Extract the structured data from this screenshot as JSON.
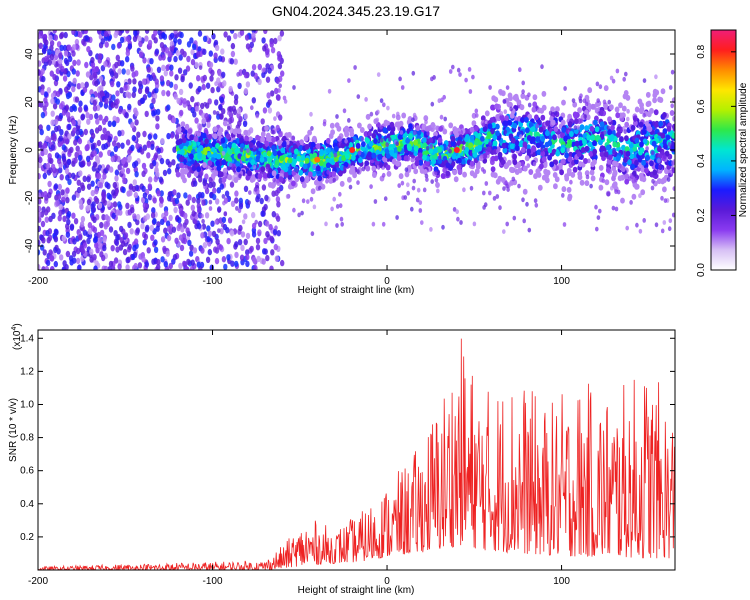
{
  "figure": {
    "title": "GN04.2024.345.23.19.G17"
  },
  "chart_data": [
    {
      "type": "heatmap",
      "xlabel": "Height of straight line (km)",
      "ylabel": "Frequency (Hz)",
      "xlim": [
        -200,
        165
      ],
      "ylim": [
        -50,
        50
      ],
      "x_ticks": [
        -200,
        -100,
        0,
        100
      ],
      "x_tick_labels": [
        "-200",
        "-100",
        "0",
        "100"
      ],
      "y_ticks": [
        -40,
        -20,
        0,
        20,
        40
      ],
      "y_tick_labels": [
        "-40",
        "-20",
        "0",
        "20",
        "40"
      ],
      "colorbar": {
        "label": "Normalized spectral amplitude",
        "range": [
          0,
          0.88
        ],
        "ticks": [
          0.0,
          0.2,
          0.4,
          0.6,
          0.8
        ],
        "tick_labels": [
          "0.0",
          "0.2",
          "0.4",
          "0.6",
          "0.8"
        ],
        "colors": [
          "#ffffff",
          "#d7c0f5",
          "#8a3bf0",
          "#5a1ad8",
          "#1b1bff",
          "#00b4ff",
          "#00e6d2",
          "#2ee84a",
          "#b4f000",
          "#ffe600",
          "#ff8c00",
          "#ff1e1e",
          "#f01e78"
        ]
      },
      "noise_region_x": [
        -200,
        -60
      ],
      "signal_band_x": [
        -120,
        165
      ],
      "ridge": [
        {
          "x": -115,
          "y": 0
        },
        {
          "x": -100,
          "y": -1
        },
        {
          "x": -80,
          "y": -2
        },
        {
          "x": -60,
          "y": -4
        },
        {
          "x": -40,
          "y": -5
        },
        {
          "x": -20,
          "y": -1
        },
        {
          "x": 0,
          "y": 2
        },
        {
          "x": 15,
          "y": 3
        },
        {
          "x": 30,
          "y": -2
        },
        {
          "x": 45,
          "y": 0
        },
        {
          "x": 60,
          "y": 6
        },
        {
          "x": 80,
          "y": 7
        },
        {
          "x": 100,
          "y": 2
        },
        {
          "x": 120,
          "y": 5
        },
        {
          "x": 140,
          "y": 1
        },
        {
          "x": 165,
          "y": 4
        }
      ],
      "peaks": [
        {
          "x": -40,
          "y": -4,
          "value": 0.75
        },
        {
          "x": -20,
          "y": 0,
          "value": 0.8
        },
        {
          "x": 40,
          "y": 0,
          "value": 0.82
        }
      ],
      "grid": false
    },
    {
      "type": "line",
      "xlabel": "Height of straight line (km)",
      "ylabel": "SNR (10 * v/v)",
      "y_multiplier": "(x10",
      "y_multiplier_exp": "4",
      "y_multiplier_close": ")",
      "xlim": [
        -200,
        165
      ],
      "ylim": [
        0,
        14500
      ],
      "x_ticks": [
        -200,
        -100,
        0,
        100
      ],
      "x_tick_labels": [
        "-200",
        "-100",
        "0",
        "100"
      ],
      "y_ticks": [
        2000,
        4000,
        6000,
        8000,
        10000,
        12000,
        14000
      ],
      "y_tick_labels": [
        "0.2",
        "0.4",
        "0.6",
        "0.8",
        "1.0",
        "1.2",
        "1.4"
      ],
      "series": [
        {
          "color": "#ee2222",
          "envelope": [
            {
              "x": -200,
              "lo": 0,
              "hi": 200
            },
            {
              "x": -100,
              "lo": 0,
              "hi": 500
            },
            {
              "x": -70,
              "lo": 0,
              "hi": 600
            },
            {
              "x": -60,
              "lo": 100,
              "hi": 1500
            },
            {
              "x": -45,
              "lo": 300,
              "hi": 3200
            },
            {
              "x": -30,
              "lo": 400,
              "hi": 2500
            },
            {
              "x": -15,
              "lo": 500,
              "hi": 3500
            },
            {
              "x": 0,
              "lo": 800,
              "hi": 5200
            },
            {
              "x": 15,
              "lo": 1000,
              "hi": 7000
            },
            {
              "x": 30,
              "lo": 1200,
              "hi": 10500
            },
            {
              "x": 42,
              "lo": 1500,
              "hi": 14300
            },
            {
              "x": 55,
              "lo": 1200,
              "hi": 11000
            },
            {
              "x": 75,
              "lo": 1000,
              "hi": 12000
            },
            {
              "x": 90,
              "lo": 900,
              "hi": 10000
            },
            {
              "x": 110,
              "lo": 800,
              "hi": 11500
            },
            {
              "x": 130,
              "lo": 800,
              "hi": 10800
            },
            {
              "x": 150,
              "lo": 700,
              "hi": 12500
            },
            {
              "x": 165,
              "lo": 700,
              "hi": 9500
            }
          ]
        }
      ],
      "grid": false
    }
  ]
}
